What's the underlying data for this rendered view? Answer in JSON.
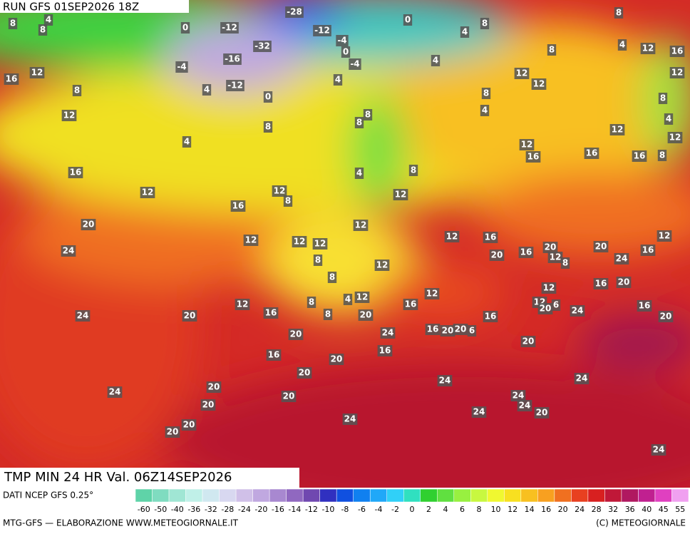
{
  "header": {
    "run": "RUN GFS 01SEP2026 18Z",
    "title": "TMP MIN 24 HR Val. 06Z14SEP2026"
  },
  "map_labels": [
    8,
    8,
    4,
    0,
    -12,
    -28,
    -12,
    -4,
    0,
    4,
    8,
    -32,
    -16,
    -4,
    0,
    -4,
    16,
    12,
    8,
    12,
    4,
    -12,
    0,
    4,
    4,
    12,
    12,
    8,
    8,
    4,
    12,
    16,
    8,
    8,
    4,
    8,
    8,
    8,
    4,
    12,
    16,
    16,
    12,
    16,
    8,
    12,
    4,
    16,
    12,
    12,
    8,
    4,
    8,
    12,
    16,
    20,
    12,
    12,
    12,
    12,
    12,
    12,
    16,
    20,
    16,
    20,
    12,
    8,
    20,
    24,
    16,
    12,
    24,
    8,
    8,
    12,
    12,
    16,
    20,
    24,
    20,
    12,
    16,
    8,
    8,
    4,
    12,
    20,
    16,
    12,
    16,
    12,
    20,
    6,
    24,
    16,
    20,
    20,
    24,
    16,
    20,
    20,
    6,
    20,
    16,
    16,
    20,
    20,
    24,
    24,
    20,
    24,
    20,
    24,
    24,
    20,
    20,
    24,
    24,
    20,
    20,
    24
  ],
  "legend": {
    "labels": [
      -60,
      -50,
      -40,
      -36,
      -32,
      -28,
      -24,
      -20,
      -16,
      -14,
      -12,
      -10,
      -8,
      -6,
      -4,
      -2,
      0,
      2,
      4,
      6,
      8,
      10,
      12,
      14,
      16,
      20,
      24,
      28,
      32,
      36,
      40,
      45,
      55
    ],
    "colors": [
      "#5fd3a8",
      "#7fdcc0",
      "#a0e6d4",
      "#c0f0e8",
      "#d0e8f0",
      "#d8d8f0",
      "#d0c0e8",
      "#c0a8e0",
      "#a888d0",
      "#9068c0",
      "#7048b0",
      "#3030c0",
      "#1050e0",
      "#1080f0",
      "#20a8f8",
      "#30d0f8",
      "#30e0c0",
      "#30d030",
      "#60e040",
      "#98f040",
      "#c8f840",
      "#f0f830",
      "#f8e020",
      "#f8c020",
      "#f8a020",
      "#f07020",
      "#e84020",
      "#d82020",
      "#c01838",
      "#b01860",
      "#c02090",
      "#e040c0",
      "#f0a0f0"
    ]
  },
  "footer": {
    "source": "DATI NCEP GFS 0.25°",
    "credit": "MTG-GFS — ELABORAZIONE WWW.METEOGIORNALE.IT",
    "copyright": "(C) METEOGIORNALE"
  }
}
